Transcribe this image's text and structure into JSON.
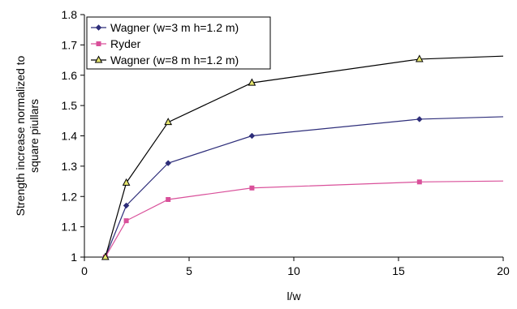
{
  "chart_data": {
    "type": "line",
    "title": "",
    "xlabel": "l/w",
    "ylabel": [
      "Strength increase normalized to",
      "square piullars"
    ],
    "xlim": [
      0,
      20
    ],
    "ylim": [
      1,
      1.8
    ],
    "x_ticks": [
      "0",
      "5",
      "10",
      "15",
      "20"
    ],
    "y_ticks": [
      "1",
      "1.1",
      "1.2",
      "1.3",
      "1.4",
      "1.5",
      "1.6",
      "1.7",
      "1.8"
    ],
    "grid": false,
    "legend_position": "top-left",
    "series": [
      {
        "name": "Wagner (w=3 m h=1.2 m)",
        "color": "#2e2e7a",
        "marker": "diamond",
        "x": [
          1,
          2,
          4,
          8,
          16,
          20
        ],
        "y": [
          1.0,
          1.17,
          1.31,
          1.4,
          1.455,
          1.463
        ],
        "marked": [
          true,
          true,
          true,
          true,
          true,
          false
        ]
      },
      {
        "name": "Ryder",
        "color": "#d9509a",
        "marker": "square",
        "x": [
          1,
          2,
          4,
          8,
          16,
          20
        ],
        "y": [
          1.0,
          1.12,
          1.19,
          1.228,
          1.248,
          1.251
        ],
        "marked": [
          true,
          true,
          true,
          true,
          true,
          false
        ]
      },
      {
        "name": "Wagner (w=8 m h=1.2 m)",
        "color": "#000000",
        "marker": "triangle",
        "marker_fill": "#e6e66e",
        "x": [
          1,
          2,
          4,
          8,
          16,
          20
        ],
        "y": [
          1.0,
          1.245,
          1.445,
          1.575,
          1.653,
          1.663
        ],
        "marked": [
          true,
          true,
          true,
          true,
          true,
          false
        ]
      }
    ]
  }
}
